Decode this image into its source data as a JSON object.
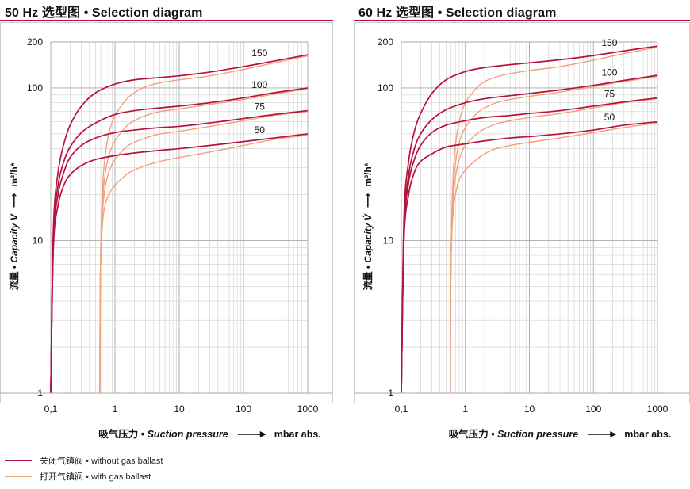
{
  "colors": {
    "without_ballast": "#b5123d",
    "with_ballast": "#f2a07c",
    "title_rule": "#b5123d",
    "grid": "#cfcfcf"
  },
  "legend": {
    "without_label": "关闭气镇阀 • without gas ballast",
    "with_label": "打开气镇阀 • with gas ballast"
  },
  "chart_data": [
    {
      "type": "line",
      "title": "50 Hz 选型图 • Selection diagram",
      "xscale": "log",
      "yscale": "log",
      "xlim": [
        0.1,
        1000
      ],
      "ylim": [
        1,
        200
      ],
      "x_ticks": [
        {
          "value": 0.1,
          "label": "0,1"
        },
        {
          "value": 1,
          "label": "1"
        },
        {
          "value": 10,
          "label": "10"
        },
        {
          "value": 100,
          "label": "100"
        },
        {
          "value": 1000,
          "label": "1000"
        }
      ],
      "y_ticks": [
        {
          "value": 1,
          "label": "1"
        },
        {
          "value": 10,
          "label": "10"
        },
        {
          "value": 100,
          "label": "100"
        },
        {
          "value": 200,
          "label": "200"
        }
      ],
      "xlabel_cn": "吸气压力 • ",
      "xlabel_en": "Suction pressure",
      "xlabel_unit": "mbar abs.",
      "ylabel_cn": "流量 • ",
      "ylabel_en": "Capacity V̇",
      "ylabel_unit": "m³/h*",
      "series": [
        {
          "name": "150",
          "label": "150",
          "ballast": false,
          "x": [
            0.1,
            0.11,
            0.13,
            0.16,
            0.2,
            0.3,
            0.5,
            1,
            2,
            5,
            10,
            30,
            100,
            300,
            1000
          ],
          "y": [
            1,
            12,
            28,
            43,
            57,
            76,
            93,
            106,
            113,
            117,
            120,
            127,
            138,
            150,
            165
          ]
        },
        {
          "name": "100",
          "label": "100",
          "ballast": false,
          "x": [
            0.1,
            0.11,
            0.13,
            0.16,
            0.2,
            0.3,
            0.5,
            1,
            2,
            5,
            10,
            30,
            100,
            300,
            1000
          ],
          "y": [
            1,
            11,
            23,
            33,
            41,
            51,
            59,
            67,
            71,
            74,
            76,
            80,
            86,
            93,
            100
          ]
        },
        {
          "name": "75",
          "label": "75",
          "ballast": false,
          "x": [
            0.1,
            0.11,
            0.13,
            0.16,
            0.2,
            0.3,
            0.5,
            1,
            2,
            5,
            10,
            30,
            100,
            300,
            1000
          ],
          "y": [
            1,
            10,
            20,
            28,
            35,
            42,
            47,
            51,
            53,
            55,
            56,
            59,
            63,
            67,
            71
          ]
        },
        {
          "name": "50",
          "label": "50",
          "ballast": false,
          "x": [
            0.1,
            0.11,
            0.13,
            0.16,
            0.2,
            0.3,
            0.5,
            1,
            2,
            5,
            10,
            30,
            100,
            300,
            1000
          ],
          "y": [
            1,
            9,
            17,
            23,
            27,
            31,
            34,
            36,
            37.5,
            39,
            40,
            42,
            44.5,
            47,
            50
          ]
        },
        {
          "name": "150 ballast",
          "ballast": true,
          "x": [
            0.58,
            0.59,
            0.61,
            0.65,
            0.7,
            0.8,
            1,
            1.5,
            2,
            3,
            5,
            10,
            30,
            100,
            300,
            1000
          ],
          "y": [
            1,
            5,
            12,
            25,
            35,
            50,
            66,
            84,
            93,
            102,
            108,
            113,
            120,
            132,
            146,
            162
          ]
        },
        {
          "name": "100 ballast",
          "ballast": true,
          "x": [
            0.58,
            0.59,
            0.61,
            0.65,
            0.7,
            0.8,
            1,
            1.5,
            2,
            3,
            5,
            10,
            30,
            100,
            300,
            1000
          ],
          "y": [
            1,
            5,
            11,
            20,
            27,
            36,
            45,
            56,
            61,
            66,
            70,
            73,
            78,
            84,
            91,
            99
          ]
        },
        {
          "name": "75 ballast",
          "ballast": true,
          "x": [
            0.58,
            0.59,
            0.61,
            0.65,
            0.7,
            0.8,
            1,
            1.5,
            2,
            3,
            5,
            10,
            30,
            100,
            300,
            1000
          ],
          "y": [
            1,
            5,
            10,
            17,
            22,
            28,
            34,
            41,
            44,
            47,
            50,
            52,
            56,
            61,
            66,
            70
          ]
        },
        {
          "name": "50 ballast",
          "ballast": true,
          "x": [
            0.58,
            0.59,
            0.61,
            0.65,
            0.7,
            0.8,
            1,
            1.5,
            2,
            3,
            5,
            10,
            30,
            100,
            300,
            1000
          ],
          "y": [
            1,
            5,
            9,
            14,
            17,
            20,
            23,
            27,
            29,
            31,
            33,
            35,
            38,
            42,
            46,
            49
          ]
        }
      ]
    },
    {
      "type": "line",
      "title": "60 Hz 选型图 • Selection diagram",
      "xscale": "log",
      "yscale": "log",
      "xlim": [
        0.1,
        1000
      ],
      "ylim": [
        1,
        200
      ],
      "x_ticks": [
        {
          "value": 0.1,
          "label": "0,1"
        },
        {
          "value": 1,
          "label": "1"
        },
        {
          "value": 10,
          "label": "10"
        },
        {
          "value": 100,
          "label": "100"
        },
        {
          "value": 1000,
          "label": "1000"
        }
      ],
      "y_ticks": [
        {
          "value": 1,
          "label": "1"
        },
        {
          "value": 10,
          "label": "10"
        },
        {
          "value": 100,
          "label": "100"
        },
        {
          "value": 200,
          "label": "200"
        }
      ],
      "xlabel_cn": "吸气压力 • ",
      "xlabel_en": "Suction pressure",
      "xlabel_unit": "mbar abs.",
      "ylabel_cn": "流量 • ",
      "ylabel_en": "Capacity V̇",
      "ylabel_unit": "m³/h*",
      "series": [
        {
          "name": "150",
          "label": "150",
          "ballast": false,
          "x": [
            0.1,
            0.11,
            0.13,
            0.16,
            0.2,
            0.3,
            0.5,
            1,
            2,
            5,
            10,
            30,
            100,
            300,
            1000
          ],
          "y": [
            1,
            14,
            33,
            52,
            68,
            92,
            113,
            128,
            136,
            142,
            146,
            153,
            163,
            175,
            188
          ]
        },
        {
          "name": "100",
          "label": "100",
          "ballast": false,
          "x": [
            0.1,
            0.11,
            0.13,
            0.16,
            0.2,
            0.3,
            0.5,
            1,
            2,
            5,
            10,
            30,
            100,
            300,
            1000
          ],
          "y": [
            1,
            12,
            27,
            40,
            50,
            62,
            72,
            80,
            85,
            89,
            92,
            97,
            104,
            112,
            121
          ]
        },
        {
          "name": "75",
          "label": "75",
          "ballast": false,
          "x": [
            0.1,
            0.11,
            0.13,
            0.16,
            0.2,
            0.3,
            0.5,
            1,
            2,
            5,
            10,
            30,
            100,
            300,
            1000
          ],
          "y": [
            1,
            11,
            24,
            34,
            42,
            51,
            57,
            61,
            64,
            66,
            68,
            71,
            76,
            81,
            86
          ]
        },
        {
          "name": "50",
          "label": "50",
          "ballast": false,
          "x": [
            0.1,
            0.11,
            0.13,
            0.16,
            0.2,
            0.3,
            0.5,
            1,
            2,
            5,
            10,
            30,
            100,
            300,
            1000
          ],
          "y": [
            1,
            10,
            20,
            28,
            33,
            37,
            41,
            43,
            45,
            47,
            48,
            50,
            53,
            57,
            60
          ]
        },
        {
          "name": "150 ballast",
          "ballast": true,
          "x": [
            0.58,
            0.59,
            0.61,
            0.65,
            0.7,
            0.8,
            1,
            1.5,
            2,
            3,
            5,
            10,
            30,
            100,
            300,
            1000
          ],
          "y": [
            1,
            5,
            13,
            28,
            42,
            60,
            80,
            100,
            110,
            118,
            124,
            130,
            138,
            152,
            168,
            185
          ]
        },
        {
          "name": "100 ballast",
          "ballast": true,
          "x": [
            0.58,
            0.59,
            0.61,
            0.65,
            0.7,
            0.8,
            1,
            1.5,
            2,
            3,
            5,
            10,
            30,
            100,
            300,
            1000
          ],
          "y": [
            1,
            5,
            12,
            23,
            32,
            44,
            55,
            68,
            74,
            80,
            84,
            88,
            94,
            102,
            110,
            119
          ]
        },
        {
          "name": "75 ballast",
          "ballast": true,
          "x": [
            0.58,
            0.59,
            0.61,
            0.65,
            0.7,
            0.8,
            1,
            1.5,
            2,
            3,
            5,
            10,
            30,
            100,
            300,
            1000
          ],
          "y": [
            1,
            5,
            11,
            19,
            26,
            34,
            42,
            50,
            54,
            58,
            61,
            64,
            68,
            74,
            80,
            85
          ]
        },
        {
          "name": "50 ballast",
          "ballast": true,
          "x": [
            0.58,
            0.59,
            0.61,
            0.65,
            0.7,
            0.8,
            1,
            1.5,
            2,
            3,
            5,
            10,
            30,
            100,
            300,
            1000
          ],
          "y": [
            1,
            5,
            10,
            16,
            20,
            25,
            29,
            34,
            37,
            40,
            42,
            44,
            47,
            51,
            55,
            59
          ]
        }
      ]
    }
  ]
}
